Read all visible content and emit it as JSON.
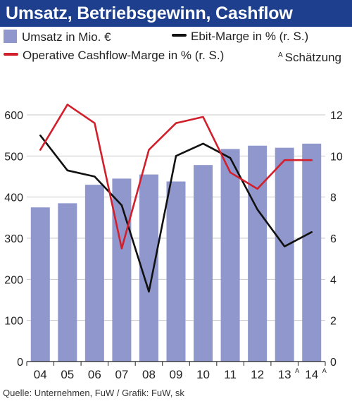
{
  "title": "Umsatz, Betriebsgewinn, Cashflow",
  "legend": {
    "bar_label": "Umsatz in Mio. €",
    "ebit_label": "Ebit-Marge in % (r. S.)",
    "cashflow_label": "Operative Cashflow-Marge in % (r. S.)",
    "estimate_letter": "A",
    "estimate_label": "Schätzung"
  },
  "source": "Quelle: Unternehmen, FuW / Grafik: FuW, sk",
  "colors": {
    "title_bg": "#1d3f8e",
    "bar": "#8f97cd",
    "ebit_line": "#111111",
    "cashflow_line": "#d11f2c"
  },
  "chart_data": {
    "type": "bar",
    "categories": [
      "04",
      "05",
      "06",
      "07",
      "08",
      "09",
      "10",
      "11",
      "12",
      "13",
      "14"
    ],
    "category_superscripts": [
      "",
      "",
      "",
      "",
      "",
      "",
      "",
      "",
      "",
      "A",
      "A"
    ],
    "left_axis": {
      "ticks": [
        0,
        100,
        200,
        300,
        400,
        500,
        600
      ],
      "ylim": [
        0,
        660
      ]
    },
    "right_axis": {
      "ticks": [
        0,
        2,
        4,
        6,
        8,
        10,
        12
      ],
      "ylim": [
        0,
        13.2
      ]
    },
    "series": [
      {
        "name": "Umsatz in Mio. €",
        "kind": "bar",
        "axis": "left",
        "values": [
          375,
          385,
          430,
          445,
          455,
          438,
          478,
          517,
          525,
          520,
          530
        ]
      },
      {
        "name": "Ebit-Marge in % (r. S.)",
        "kind": "line",
        "axis": "right",
        "values": [
          11.0,
          9.3,
          9.0,
          7.6,
          3.4,
          10.0,
          10.6,
          9.9,
          7.4,
          5.6,
          6.3
        ]
      },
      {
        "name": "Operative Cashflow-Marge in % (r. S.)",
        "kind": "line",
        "axis": "right",
        "values": [
          10.3,
          12.5,
          11.6,
          5.5,
          10.3,
          11.6,
          11.9,
          9.2,
          8.4,
          9.8,
          9.8
        ]
      }
    ],
    "grid": "horizontal"
  }
}
